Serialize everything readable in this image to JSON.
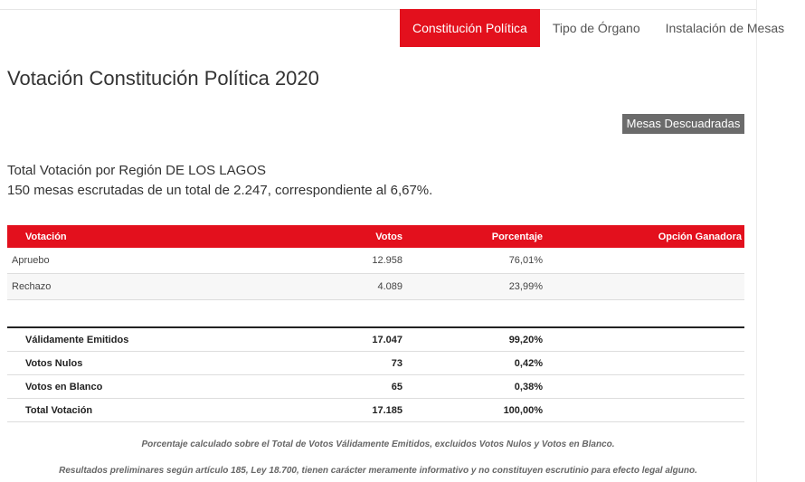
{
  "tabs": [
    {
      "label": "Constitución Política",
      "active": true
    },
    {
      "label": "Tipo de Órgano",
      "active": false
    },
    {
      "label": "Instalación de Mesas",
      "active": false
    }
  ],
  "page_title": "Votación Constitución Política 2020",
  "mesas_button": "Mesas Descuadradas",
  "summary": {
    "line1": "Total Votación por Región DE LOS LAGOS",
    "line2": "150 mesas escrutadas de un total de 2.247, correspondiente al 6,67%."
  },
  "results": {
    "headers": [
      "Votación",
      "Votos",
      "Porcentaje",
      "Opción Ganadora"
    ],
    "rows": [
      {
        "label": "Apruebo",
        "votos": "12.958",
        "pct": "76,01%",
        "ganadora": ""
      },
      {
        "label": "Rechazo",
        "votos": "4.089",
        "pct": "23,99%",
        "ganadora": ""
      }
    ]
  },
  "totals": [
    {
      "label": "Válidamente Emitidos",
      "votos": "17.047",
      "pct": "99,20%"
    },
    {
      "label": "Votos Nulos",
      "votos": "73",
      "pct": "0,42%"
    },
    {
      "label": "Votos en Blanco",
      "votos": "65",
      "pct": "0,38%"
    },
    {
      "label": "Total Votación",
      "votos": "17.185",
      "pct": "100,00%"
    }
  ],
  "notes": {
    "note1": "Porcentaje calculado sobre el Total de Votos Válidamente Emitidos, excluidos Votos Nulos y Votos en Blanco.",
    "note2": "Resultados preliminares según artículo 185, Ley 18.700, tienen carácter meramente informativo y no constituyen escrutinio para efecto legal alguno."
  },
  "colors": {
    "accent": "#e3101d",
    "button_gray": "#6b6b6b"
  }
}
